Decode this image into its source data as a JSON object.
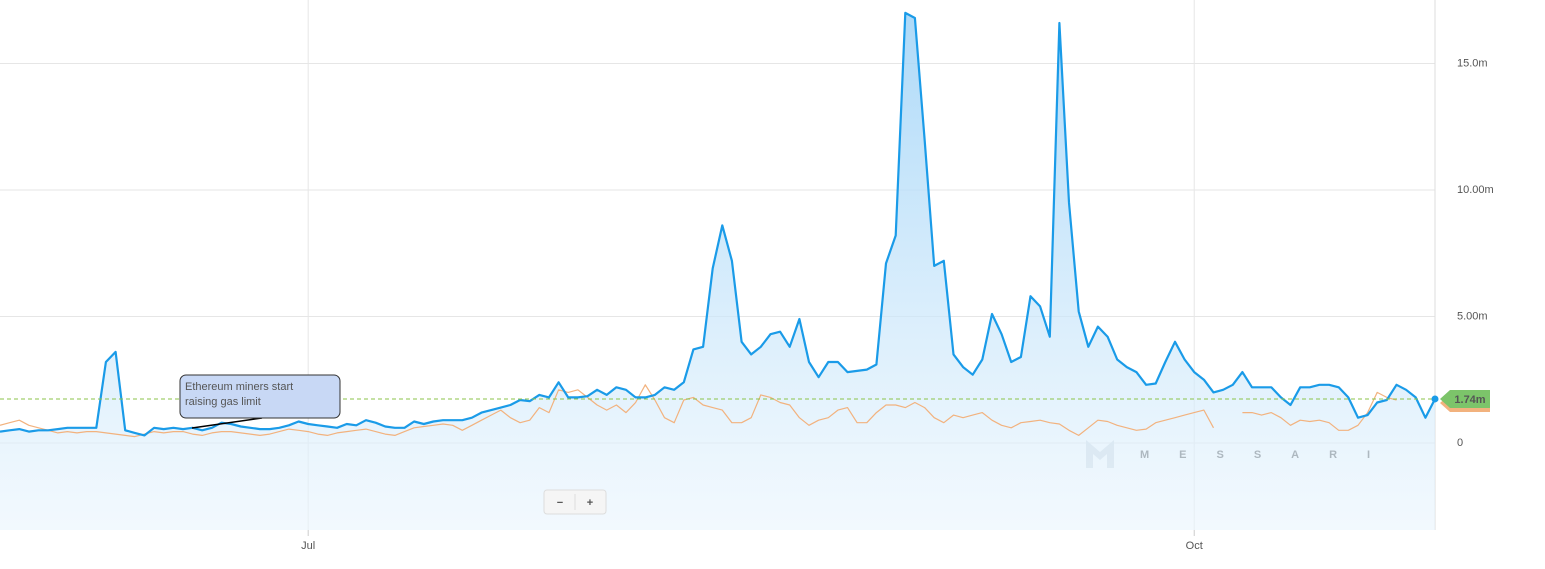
{
  "chart_data": {
    "type": "line",
    "categories": [
      null,
      null,
      null,
      null,
      null,
      null,
      null,
      null,
      null,
      null,
      null,
      null,
      null,
      null,
      null,
      null,
      null,
      null,
      null,
      null,
      null,
      null,
      null,
      null,
      null,
      null,
      null,
      null,
      null,
      null,
      null,
      null,
      "Jul",
      null,
      null,
      null,
      null,
      null,
      null,
      null,
      null,
      null,
      null,
      null,
      null,
      null,
      null,
      null,
      null,
      null,
      null,
      null,
      null,
      null,
      null,
      null,
      null,
      null,
      null,
      null,
      null,
      null,
      null,
      null,
      null,
      null,
      null,
      null,
      null,
      null,
      null,
      null,
      null,
      null,
      null,
      null,
      null,
      null,
      null,
      null,
      null,
      null,
      null,
      null,
      null,
      null,
      null,
      null,
      null,
      null,
      null,
      null,
      null,
      null,
      null,
      null,
      null,
      null,
      null,
      null,
      null,
      null,
      null,
      null,
      null,
      null,
      null,
      null,
      null,
      null,
      null,
      null,
      null,
      null,
      null,
      null,
      null,
      null,
      null,
      null,
      null,
      null,
      null,
      null,
      "Oct",
      null,
      null,
      null,
      null,
      null,
      null,
      null,
      null,
      null,
      null,
      null,
      null,
      null,
      null,
      null,
      null,
      null,
      null,
      null,
      null,
      null,
      null,
      null,
      null,
      null
    ],
    "series": [
      {
        "color": "#1a9be8",
        "values": [
          0.45,
          0.5,
          0.55,
          0.45,
          0.5,
          0.5,
          0.55,
          0.6,
          0.6,
          0.6,
          0.6,
          3.2,
          3.6,
          0.5,
          0.4,
          0.3,
          0.6,
          0.55,
          0.6,
          0.55,
          0.6,
          0.5,
          0.6,
          0.8,
          0.75,
          0.65,
          0.6,
          0.55,
          0.55,
          0.6,
          0.7,
          0.85,
          0.75,
          0.7,
          0.65,
          0.6,
          0.75,
          0.7,
          0.9,
          0.8,
          0.65,
          0.6,
          0.6,
          0.85,
          0.75,
          0.85,
          0.9,
          0.9,
          0.9,
          1.0,
          1.2,
          1.3,
          1.4,
          1.5,
          1.7,
          1.65,
          1.9,
          1.8,
          2.4,
          1.8,
          1.8,
          1.85,
          2.1,
          1.9,
          2.2,
          2.1,
          1.8,
          1.8,
          1.9,
          2.2,
          2.1,
          2.4,
          3.7,
          3.8,
          6.9,
          8.6,
          7.2,
          4.0,
          3.5,
          3.8,
          4.3,
          4.4,
          3.8,
          4.9,
          3.2,
          2.6,
          3.2,
          3.2,
          2.8,
          2.85,
          2.9,
          3.1,
          7.1,
          8.2,
          17.0,
          16.8,
          12.0,
          7.0,
          7.2,
          3.5,
          3.0,
          2.7,
          3.3,
          5.1,
          4.3,
          3.2,
          3.4,
          5.8,
          5.4,
          4.2,
          16.6,
          9.5,
          5.2,
          3.8,
          4.6,
          4.2,
          3.3,
          3.0,
          2.8,
          2.3,
          2.35,
          3.2,
          4.0,
          3.3,
          2.8,
          2.5,
          2.0,
          2.1,
          2.3,
          2.8,
          2.2,
          2.2,
          2.2,
          1.8,
          1.5,
          2.2,
          2.2,
          2.3,
          2.3,
          2.2,
          1.8,
          1.0,
          1.1,
          1.6,
          1.7,
          2.3,
          2.1,
          1.8,
          1.0,
          1.74
        ]
      },
      {
        "color": "#f2b27e",
        "values": [
          0.7,
          0.8,
          0.9,
          0.7,
          0.6,
          0.5,
          0.4,
          0.45,
          0.4,
          0.45,
          0.45,
          0.4,
          0.35,
          0.3,
          0.25,
          0.35,
          0.45,
          0.4,
          0.45,
          0.45,
          0.35,
          0.3,
          0.4,
          0.45,
          0.45,
          0.4,
          0.35,
          0.3,
          0.35,
          0.45,
          0.55,
          0.5,
          0.45,
          0.35,
          0.3,
          0.4,
          0.45,
          0.5,
          0.55,
          0.45,
          0.35,
          0.3,
          0.45,
          0.6,
          0.65,
          0.7,
          0.75,
          0.7,
          0.5,
          0.7,
          0.9,
          1.1,
          1.3,
          1.0,
          0.8,
          0.9,
          1.4,
          1.2,
          2.1,
          2.0,
          2.1,
          1.8,
          1.5,
          1.3,
          1.5,
          1.2,
          1.6,
          2.3,
          1.7,
          1.0,
          0.8,
          1.7,
          1.8,
          1.5,
          1.4,
          1.3,
          0.8,
          0.8,
          1.0,
          1.9,
          1.8,
          1.6,
          1.5,
          1.0,
          0.7,
          0.9,
          1.0,
          1.3,
          1.4,
          0.8,
          0.8,
          1.2,
          1.5,
          1.5,
          1.4,
          1.6,
          1.4,
          1.0,
          0.8,
          1.1,
          1.0,
          1.1,
          1.2,
          0.9,
          0.7,
          0.6,
          0.8,
          0.85,
          0.9,
          0.8,
          0.75,
          0.5,
          0.3,
          0.6,
          0.9,
          0.85,
          0.7,
          0.6,
          0.5,
          0.55,
          0.8,
          0.9,
          1.0,
          1.1,
          1.2,
          1.3,
          0.6,
          null,
          null,
          1.2,
          1.2,
          1.1,
          1.2,
          1.0,
          0.7,
          0.9,
          0.85,
          0.9,
          0.8,
          0.5,
          0.5,
          0.7,
          1.2,
          2.0,
          1.8,
          1.7,
          null,
          null,
          null,
          null
        ]
      }
    ],
    "ylim": [
      -3.44,
      17.51
    ],
    "yticks": [
      0,
      {
        "value": 5,
        "label": "5.00m"
      },
      {
        "value": 10,
        "label": "10.00m"
      },
      {
        "value": 15,
        "label": "15.0m"
      }
    ],
    "grid": true,
    "current_value": {
      "value": 1.74,
      "label": "1.74m"
    },
    "annotation": {
      "lines": [
        "Ethereum miners start",
        "raising gas limit"
      ]
    },
    "watermark": "MESSARI",
    "zoom_buttons": [
      "−",
      "+"
    ]
  }
}
